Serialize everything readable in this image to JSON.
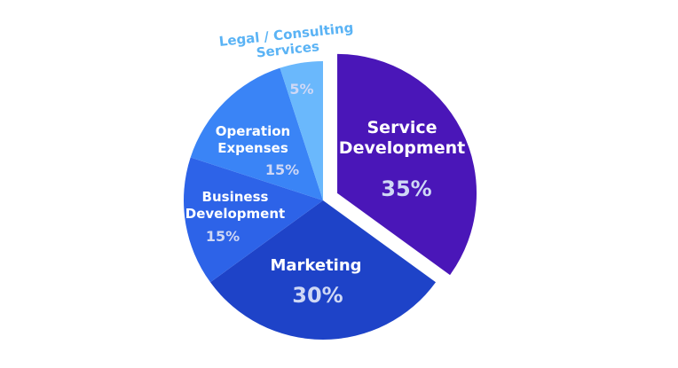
{
  "chart_data": {
    "type": "pie",
    "title": "",
    "exploded_slice": "Service Development",
    "legend": "none",
    "slices": [
      {
        "label_lines": [
          "Service",
          "Development"
        ],
        "label": "Service Development",
        "value": 35,
        "value_label": "35%",
        "color": "#4a16b8"
      },
      {
        "label_lines": [
          "Marketing"
        ],
        "label": "Marketing",
        "value": 30,
        "value_label": "30%",
        "color": "#1e43c8"
      },
      {
        "label_lines": [
          "Business",
          "Development"
        ],
        "label": "Business Development",
        "value": 15,
        "value_label": "15%",
        "color": "#2d63e8"
      },
      {
        "label_lines": [
          "Operation",
          "Expenses"
        ],
        "label": "Operation Expenses",
        "value": 15,
        "value_label": "15%",
        "color": "#3a84f6"
      },
      {
        "label_lines": [
          "Legal / Consulting",
          "Services"
        ],
        "label": "Legal / Consulting Services",
        "value": 5,
        "value_label": "5%",
        "color": "#6ab8fc"
      }
    ],
    "colors": {
      "label_white": "#ffffff",
      "percent_light": "#cfd8f5",
      "external_label": "#5ab3f5"
    }
  }
}
